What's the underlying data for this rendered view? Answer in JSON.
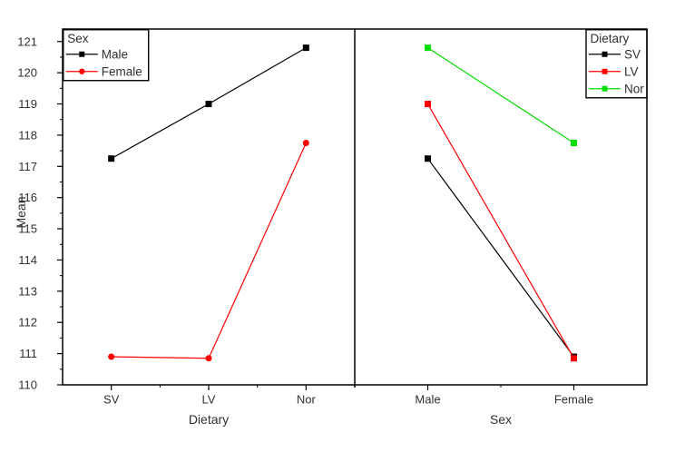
{
  "window": {
    "background": "#ffffff"
  },
  "chart_data": {
    "type": "line",
    "description": "Two-panel interaction plot of Mean by Dietary and Sex",
    "title": "",
    "ylabel": "Mean",
    "ylim": [
      110,
      121.4
    ],
    "ytick_min": 110,
    "ytick_max": 121,
    "ytick_step": 1,
    "yminor_step": 0.5,
    "grid": false,
    "axis_color": "#000000",
    "text_color": "#303030",
    "panels": [
      {
        "xlabel": "Dietary",
        "categories": [
          "SV",
          "LV",
          "Nor"
        ],
        "legend": {
          "title": "Sex",
          "position": "top-left"
        },
        "series": [
          {
            "name": "Male",
            "color": "#000000",
            "marker": "square",
            "values": [
              117.25,
              119.0,
              120.8
            ]
          },
          {
            "name": "Female",
            "color": "#ff0000",
            "marker": "circle",
            "values": [
              110.9,
              110.85,
              117.75
            ]
          }
        ]
      },
      {
        "xlabel": "Sex",
        "categories": [
          "Male",
          "Female"
        ],
        "legend": {
          "title": "Dietary",
          "position": "top-right"
        },
        "series": [
          {
            "name": "SV",
            "color": "#000000",
            "marker": "square",
            "values": [
              117.25,
              110.9
            ]
          },
          {
            "name": "LV",
            "color": "#ff0000",
            "marker": "square",
            "values": [
              119.0,
              110.85
            ]
          },
          {
            "name": "Nor",
            "color": "#00dd00",
            "marker": "square",
            "values": [
              120.8,
              117.75
            ]
          }
        ]
      }
    ]
  }
}
